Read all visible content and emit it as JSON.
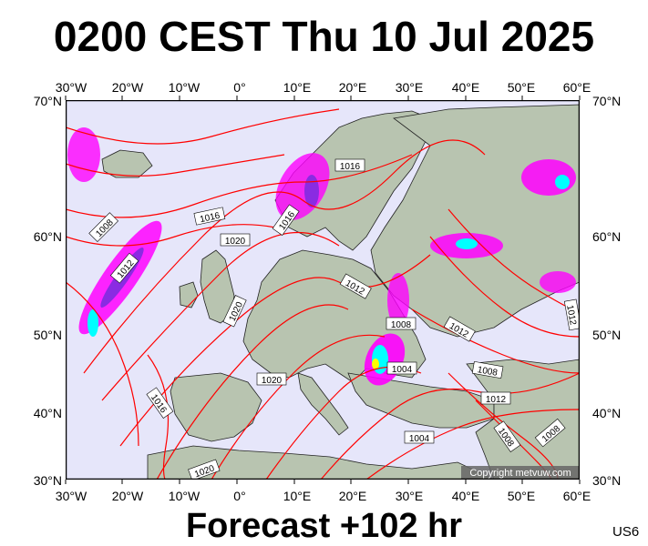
{
  "title": "0200 CEST Thu 10 Jul 2025",
  "footer": "Forecast +102 hr",
  "model_code": "US6",
  "copyright": "Copyright metvuw.com",
  "axes": {
    "top_longitudes": [
      "30°W",
      "20°W",
      "10°W",
      "0°",
      "10°E",
      "20°E",
      "30°E",
      "40°E",
      "50°E",
      "60°E"
    ],
    "bottom_longitudes": [
      "30°W",
      "20°W",
      "10°W",
      "0°",
      "10°E",
      "20°E",
      "30°E",
      "40°E",
      "50°E",
      "60°E"
    ],
    "left_latitudes": [
      "70°N",
      "60°N",
      "50°N",
      "40°N",
      "30°N"
    ],
    "right_latitudes": [
      "70°N",
      "60°N",
      "50°N",
      "40°N",
      "30°N"
    ]
  },
  "isobar_labels": [
    "1016",
    "1016",
    "1016",
    "1008",
    "1012",
    "1020",
    "1012",
    "1020",
    "1008",
    "1012",
    "1004",
    "1008",
    "1012",
    "1020",
    "1016",
    "1004",
    "1008",
    "1008",
    "1020",
    "1012"
  ],
  "colors": {
    "isobar": "#ff0000",
    "sea": "#e6e6fa",
    "land": "#b8c4b0",
    "precip_low": "#ff00ff",
    "precip_mid": "#8a2be2",
    "precip_high": "#00ffff"
  }
}
